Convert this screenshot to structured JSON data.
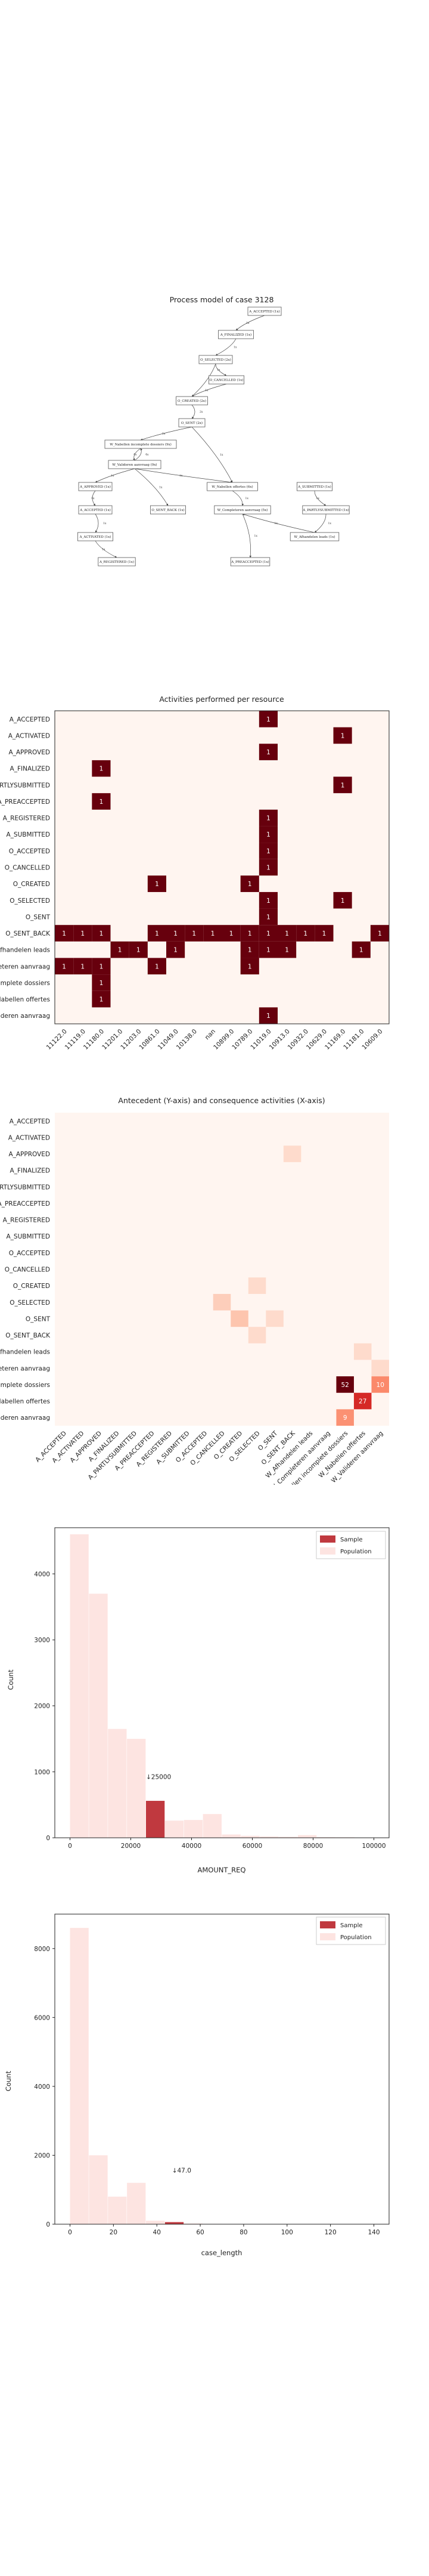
{
  "chart_data": [
    {
      "type": "diagram",
      "title": "Process model of case 3128",
      "nodes": [
        {
          "id": "n0",
          "label": "A_ACCEPTED (1x)"
        },
        {
          "id": "n1",
          "label": "A_FINALIZED (1x)"
        },
        {
          "id": "n2",
          "label": "O_SELECTED (2x)"
        },
        {
          "id": "n3",
          "label": "O_CANCELLED (1x)"
        },
        {
          "id": "n4",
          "label": "O_CREATED (2x)"
        },
        {
          "id": "n5",
          "label": "O_SENT (2x)"
        },
        {
          "id": "n6",
          "label": "W_Nabellen incomplete dossiers (9x)"
        },
        {
          "id": "n7",
          "label": "W_Valideren aanvraag (9x)"
        },
        {
          "id": "n8",
          "label": "W_Nabellen offertes (6x)"
        },
        {
          "id": "n9",
          "label": "A_SUBMITTED (1x)"
        },
        {
          "id": "n10",
          "label": "A_PARTLYSUBMITTED (1x)"
        },
        {
          "id": "n11",
          "label": "A_APPROVED (1x)"
        },
        {
          "id": "n12",
          "label": "A_ACCEPTED (1x)"
        },
        {
          "id": "n13",
          "label": "O_SENT_BACK (1x)"
        },
        {
          "id": "n14",
          "label": "W_Completeren aanvraag (5x)"
        },
        {
          "id": "n15",
          "label": "W_Afhandelen leads (1x)"
        },
        {
          "id": "n16",
          "label": "A_ACTIVATED (1x)"
        },
        {
          "id": "n17",
          "label": "A_PREACCEPTED (1x)"
        },
        {
          "id": "n18",
          "label": "A_REGISTERED (1x)"
        }
      ],
      "edges": [
        {
          "from": "n0",
          "to": "n1",
          "label": "1x"
        },
        {
          "from": "n1",
          "to": "n2",
          "label": "1x"
        },
        {
          "from": "n2",
          "to": "n3",
          "label": "1x"
        },
        {
          "from": "n2",
          "to": "n4",
          "label": "1x"
        },
        {
          "from": "n3",
          "to": "n4",
          "label": "1x"
        },
        {
          "from": "n4",
          "to": "n5",
          "label": "2x"
        },
        {
          "from": "n5",
          "to": "n6",
          "label": "1x"
        },
        {
          "from": "n5",
          "to": "n8",
          "label": "1x"
        },
        {
          "from": "n6",
          "to": "n7",
          "label": "4x"
        },
        {
          "from": "n7",
          "to": "n6",
          "label": "4x"
        },
        {
          "from": "n7",
          "to": "n11",
          "label": "1x"
        },
        {
          "from": "n7",
          "to": "n13",
          "label": "1x"
        },
        {
          "from": "n7",
          "to": "n8",
          "label": "1x"
        },
        {
          "from": "n8",
          "to": "n14",
          "label": "1x"
        },
        {
          "from": "n9",
          "to": "n10",
          "label": "1x"
        },
        {
          "from": "n10",
          "to": "n15",
          "label": "1x"
        },
        {
          "from": "n15",
          "to": "n14",
          "label": "1x"
        },
        {
          "from": "n14",
          "to": "n17",
          "label": "1x"
        },
        {
          "from": "n11",
          "to": "n12",
          "label": "1x"
        },
        {
          "from": "n12",
          "to": "n16",
          "label": "1x"
        },
        {
          "from": "n16",
          "to": "n18",
          "label": "1x"
        }
      ]
    },
    {
      "type": "heatmap",
      "title": "Activities performed per resource",
      "rows": [
        "A_ACCEPTED",
        "A_ACTIVATED",
        "A_APPROVED",
        "A_FINALIZED",
        "A_PARTLYSUBMITTED",
        "A_PREACCEPTED",
        "A_REGISTERED",
        "A_SUBMITTED",
        "O_ACCEPTED",
        "O_CANCELLED",
        "O_CREATED",
        "O_SELECTED",
        "O_SENT",
        "O_SENT_BACK",
        "W_Afhandelen leads",
        "W_Completeren aanvraag",
        "W_Nabellen incomplete dossiers",
        "W_Nabellen offertes",
        "W_Valideren aanvraag"
      ],
      "columns": [
        "11122.0",
        "11119.0",
        "11180.0",
        "11201.0",
        "11203.0",
        "10861.0",
        "11049.0",
        "10138.0",
        "nan",
        "10899.0",
        "10789.0",
        "11019.0",
        "10913.0",
        "10932.0",
        "10629.0",
        "11169.0",
        "11181.0",
        "10609.0"
      ],
      "cells": [
        {
          "row": 0,
          "col": 11,
          "value": 1
        },
        {
          "row": 1,
          "col": 15,
          "value": 1
        },
        {
          "row": 2,
          "col": 11,
          "value": 1
        },
        {
          "row": 3,
          "col": 2,
          "value": 1
        },
        {
          "row": 4,
          "col": 15,
          "value": 1
        },
        {
          "row": 5,
          "col": 2,
          "value": 1
        },
        {
          "row": 6,
          "col": 11,
          "value": 1
        },
        {
          "row": 7,
          "col": 11,
          "value": 1
        },
        {
          "row": 8,
          "col": 11,
          "value": 1
        },
        {
          "row": 9,
          "col": 11,
          "value": 1
        },
        {
          "row": 10,
          "col": 5,
          "value": 1
        },
        {
          "row": 10,
          "col": 10,
          "value": 1
        },
        {
          "row": 11,
          "col": 11,
          "value": 1
        },
        {
          "row": 11,
          "col": 15,
          "value": 1
        },
        {
          "row": 12,
          "col": 11,
          "value": 1
        },
        {
          "row": 13,
          "col": 0,
          "value": 1
        },
        {
          "row": 13,
          "col": 1,
          "value": 1
        },
        {
          "row": 13,
          "col": 2,
          "value": 1
        },
        {
          "row": 13,
          "col": 5,
          "value": 1
        },
        {
          "row": 13,
          "col": 6,
          "value": 1
        },
        {
          "row": 13,
          "col": 7,
          "value": 1
        },
        {
          "row": 13,
          "col": 8,
          "value": 1
        },
        {
          "row": 13,
          "col": 9,
          "value": 1
        },
        {
          "row": 13,
          "col": 10,
          "value": 1
        },
        {
          "row": 13,
          "col": 11,
          "value": 1
        },
        {
          "row": 13,
          "col": 12,
          "value": 1
        },
        {
          "row": 13,
          "col": 13,
          "value": 1
        },
        {
          "row": 13,
          "col": 14,
          "value": 1
        },
        {
          "row": 13,
          "col": 17,
          "value": 1
        },
        {
          "row": 14,
          "col": 3,
          "value": 1
        },
        {
          "row": 14,
          "col": 4,
          "value": 1
        },
        {
          "row": 14,
          "col": 6,
          "value": 1
        },
        {
          "row": 14,
          "col": 10,
          "value": 1
        },
        {
          "row": 14,
          "col": 11,
          "value": 1
        },
        {
          "row": 14,
          "col": 12,
          "value": 1
        },
        {
          "row": 14,
          "col": 16,
          "value": 1
        },
        {
          "row": 15,
          "col": 0,
          "value": 1
        },
        {
          "row": 15,
          "col": 1,
          "value": 1
        },
        {
          "row": 15,
          "col": 2,
          "value": 1
        },
        {
          "row": 15,
          "col": 5,
          "value": 1
        },
        {
          "row": 15,
          "col": 10,
          "value": 1
        },
        {
          "row": 16,
          "col": 2,
          "value": 1
        },
        {
          "row": 17,
          "col": 2,
          "value": 1
        },
        {
          "row": 18,
          "col": 11,
          "value": 1
        }
      ]
    },
    {
      "type": "heatmap",
      "title": "Antecedent (Y-axis) and consequence activities (X-axis)",
      "rows": [
        "A_ACCEPTED",
        "A_ACTIVATED",
        "A_APPROVED",
        "A_FINALIZED",
        "A_PARTLYSUBMITTED",
        "A_PREACCEPTED",
        "A_REGISTERED",
        "A_SUBMITTED",
        "O_ACCEPTED",
        "O_CANCELLED",
        "O_CREATED",
        "O_SELECTED",
        "O_SENT",
        "O_SENT_BACK",
        "W_Afhandelen leads",
        "W_Completeren aanvraag",
        "W_Nabellen incomplete dossiers",
        "W_Nabellen offertes",
        "W_Valideren aanvraag"
      ],
      "columns": [
        "A_ACCEPTED",
        "A_ACTIVATED",
        "A_APPROVED",
        "A_FINALIZED",
        "A_PARTLYSUBMITTED",
        "A_PREACCEPTED",
        "A_REGISTERED",
        "A_SUBMITTED",
        "O_ACCEPTED",
        "O_CANCELLED",
        "O_CREATED",
        "O_SELECTED",
        "O_SENT",
        "O_SENT_BACK",
        "W_Afhandelen leads",
        "W_Completeren aanvraag",
        "W_Nabellen incomplete dossiers",
        "W_Nabellen offertes",
        "W_Valideren aanvraag"
      ],
      "cells": [
        {
          "row": 16,
          "col": 16,
          "value": 52
        },
        {
          "row": 17,
          "col": 17,
          "value": 27
        },
        {
          "row": 18,
          "col": 16,
          "value": 9
        },
        {
          "row": 16,
          "col": 18,
          "value": 10
        },
        {
          "row": 12,
          "col": 10,
          "value": 3
        },
        {
          "row": 11,
          "col": 9,
          "value": 2
        },
        {
          "row": 15,
          "col": 18,
          "value": 1
        },
        {
          "row": 13,
          "col": 11,
          "value": 1
        },
        {
          "row": 12,
          "col": 12,
          "value": 1
        },
        {
          "row": 10,
          "col": 11,
          "value": 1
        },
        {
          "row": 2,
          "col": 13,
          "value": 1
        },
        {
          "row": 14,
          "col": 17,
          "value": 1
        }
      ]
    },
    {
      "type": "histogram",
      "xlabel": "AMOUNT_REQ",
      "ylabel": "Count",
      "xlim": [
        -5000,
        105000
      ],
      "ylim": [
        0,
        4700
      ],
      "xticks": [
        0,
        20000,
        40000,
        60000,
        80000,
        100000
      ],
      "yticks": [
        0,
        1000,
        2000,
        3000,
        4000
      ],
      "bin_width": 6250,
      "series": [
        {
          "name": "Sample",
          "color": "#c0393f",
          "bins": [
            {
              "x0": 25000,
              "count": 560
            }
          ]
        },
        {
          "name": "Population",
          "color": "#fde4e1",
          "bins": [
            {
              "x0": 0,
              "count": 4600
            },
            {
              "x0": 6250,
              "count": 3700
            },
            {
              "x0": 12500,
              "count": 1650
            },
            {
              "x0": 18750,
              "count": 1500
            },
            {
              "x0": 25000,
              "count": 560
            },
            {
              "x0": 31250,
              "count": 260
            },
            {
              "x0": 37500,
              "count": 270
            },
            {
              "x0": 43750,
              "count": 360
            },
            {
              "x0": 50000,
              "count": 50
            },
            {
              "x0": 56250,
              "count": 30
            },
            {
              "x0": 62500,
              "count": 20
            },
            {
              "x0": 68750,
              "count": 15
            },
            {
              "x0": 75000,
              "count": 40
            },
            {
              "x0": 81250,
              "count": 10
            },
            {
              "x0": 87500,
              "count": 8
            },
            {
              "x0": 93750,
              "count": 5
            }
          ]
        }
      ],
      "annotation": {
        "text": "↓25000",
        "x": 25000,
        "y": 890
      },
      "legend": "top-right"
    },
    {
      "type": "histogram",
      "xlabel": "case_length",
      "ylabel": "Count",
      "xlim": [
        -7,
        147
      ],
      "ylim": [
        0,
        9000
      ],
      "xticks": [
        0,
        20,
        40,
        60,
        80,
        100,
        120,
        140
      ],
      "yticks": [
        0,
        2000,
        4000,
        6000,
        8000
      ],
      "bin_width": 8.75,
      "series": [
        {
          "name": "Sample",
          "color": "#c0393f",
          "bins": [
            {
              "x0": 43.75,
              "count": 60
            }
          ]
        },
        {
          "name": "Population",
          "color": "#fde4e1",
          "bins": [
            {
              "x0": 0,
              "count": 8600
            },
            {
              "x0": 8.75,
              "count": 2000
            },
            {
              "x0": 17.5,
              "count": 800
            },
            {
              "x0": 26.25,
              "count": 1200
            },
            {
              "x0": 35,
              "count": 100
            },
            {
              "x0": 43.75,
              "count": 60
            },
            {
              "x0": 52.5,
              "count": 20
            },
            {
              "x0": 61.25,
              "count": 10
            }
          ]
        }
      ],
      "annotation": {
        "text": "↓47.0",
        "x": 47,
        "y": 1500
      },
      "legend": "top-right"
    }
  ]
}
